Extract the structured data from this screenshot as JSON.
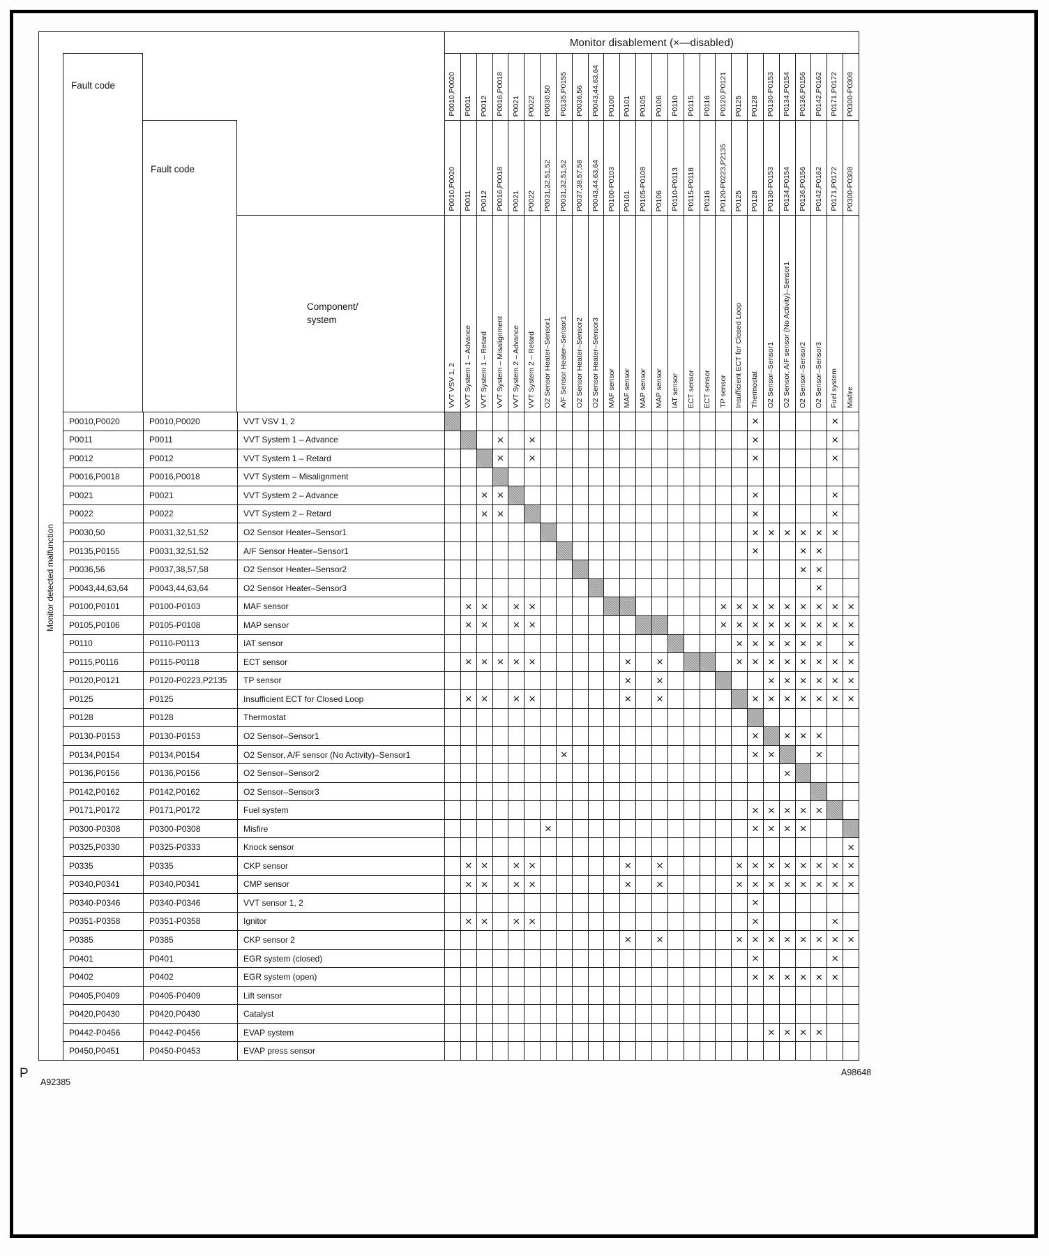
{
  "colors": {
    "ink": "#1a1a1a",
    "diag_fill": "#a8a8a8"
  },
  "table": {
    "monitor_band": "Monitor disablement (×—disabled)",
    "fault_code_header_outer": "Fault code",
    "fault_code_header_inner": "Fault code",
    "component_header_line1": "Component/",
    "component_header_line2": "system",
    "side_label": "Monitor detected malfunction",
    "x_mark": "×",
    "columns": [
      {
        "code1": "P0010,P0020",
        "code2": "P0010,P0020",
        "component": "VVT VSV 1, 2"
      },
      {
        "code1": "P0011",
        "code2": "P0011",
        "component": "VVT System 1 – Advance"
      },
      {
        "code1": "P0012",
        "code2": "P0012",
        "component": "VVT System 1 – Retard"
      },
      {
        "code1": "P0016,P0018",
        "code2": "P0016,P0018",
        "component": "VVT System – Misalignment"
      },
      {
        "code1": "P0021",
        "code2": "P0021",
        "component": "VVT System 2 – Advance"
      },
      {
        "code1": "P0022",
        "code2": "P0022",
        "component": "VVT System 2 – Retard"
      },
      {
        "code1": "P0030,50",
        "code2": "P0031,32,51,52",
        "component": "O2 Sensor Heater–Sensor1"
      },
      {
        "code1": "P0135,P0155",
        "code2": "P0031,32,51,52",
        "component": "A/F Sensor Heater–Sensor1"
      },
      {
        "code1": "P0036,56",
        "code2": "P0037,38,57,58",
        "component": "O2 Sensor Heater–Sensor2"
      },
      {
        "code1": "P0043,44,63,64",
        "code2": "P0043,44,63,64",
        "component": "O2 Sensor Heater–Sensor3"
      },
      {
        "code1": "P0100",
        "code2": "P0100-P0103",
        "component": "MAF sensor"
      },
      {
        "code1": "P0101",
        "code2": "P0101",
        "component": "MAF sensor"
      },
      {
        "code1": "P0105",
        "code2": "P0105-P0108",
        "component": "MAP sensor"
      },
      {
        "code1": "P0106",
        "code2": "P0106",
        "component": "MAP sensor"
      },
      {
        "code1": "P0110",
        "code2": "P0110-P0113",
        "component": "IAT sensor"
      },
      {
        "code1": "P0115",
        "code2": "P0115-P0118",
        "component": "ECT sensor"
      },
      {
        "code1": "P0116",
        "code2": "P0116",
        "component": "ECT sensor"
      },
      {
        "code1": "P0120,P0121",
        "code2": "P0120-P0223,P2135",
        "component": "TP sensor"
      },
      {
        "code1": "P0125",
        "code2": "P0125",
        "component": "Insufficient ECT for Closed Loop"
      },
      {
        "code1": "P0128",
        "code2": "P0128",
        "component": "Thermostat"
      },
      {
        "code1": "P0130-P0153",
        "code2": "P0130-P0153",
        "component": "O2 Sensor–Sensor1"
      },
      {
        "code1": "P0134,P0154",
        "code2": "P0134,P0154",
        "component": "O2 Sensor, A/F sensor (No Activity)–Sensor1"
      },
      {
        "code1": "P0136,P0156",
        "code2": "P0136,P0156",
        "component": "O2 Sensor–Sensor2"
      },
      {
        "code1": "P0142,P0162",
        "code2": "P0142,P0162",
        "component": "O2 Sensor–Sensor3"
      },
      {
        "code1": "P0171,P0172",
        "code2": "P0171,P0172",
        "component": "Fuel system"
      },
      {
        "code1": "P0300-P0308",
        "code2": "P0300-P0308",
        "component": "Misfire"
      }
    ],
    "rows": [
      {
        "code1": "P0010,P0020",
        "code2": "P0010,P0020",
        "component": "VVT VSV 1, 2",
        "diag": [
          0
        ],
        "x": [
          19,
          24
        ]
      },
      {
        "code1": "P0011",
        "code2": "P0011",
        "component": "VVT System 1 – Advance",
        "diag": [
          1
        ],
        "x": [
          3,
          5,
          19,
          24
        ]
      },
      {
        "code1": "P0012",
        "code2": "P0012",
        "component": "VVT System 1 – Retard",
        "diag": [
          2
        ],
        "x": [
          3,
          5,
          19,
          24
        ]
      },
      {
        "code1": "P0016,P0018",
        "code2": "P0016,P0018",
        "component": "VVT System – Misalignment",
        "diag": [
          3
        ],
        "x": []
      },
      {
        "code1": "P0021",
        "code2": "P0021",
        "component": "VVT System 2 – Advance",
        "diag": [
          4
        ],
        "x": [
          2,
          3,
          19,
          24
        ]
      },
      {
        "code1": "P0022",
        "code2": "P0022",
        "component": "VVT System 2 – Retard",
        "diag": [
          5
        ],
        "x": [
          2,
          3,
          19,
          24
        ]
      },
      {
        "code1": "P0030,50",
        "code2": "P0031,32,51,52",
        "component": "O2 Sensor Heater–Sensor1",
        "diag": [
          6
        ],
        "x": [
          19,
          20,
          21,
          22,
          23,
          24
        ]
      },
      {
        "code1": "P0135,P0155",
        "code2": "P0031,32,51,52",
        "component": "A/F Sensor Heater–Sensor1",
        "diag": [
          7
        ],
        "x": [
          19,
          22,
          23
        ]
      },
      {
        "code1": "P0036,56",
        "code2": "P0037,38,57,58",
        "component": "O2 Sensor Heater–Sensor2",
        "diag": [
          8
        ],
        "x": [
          22,
          23
        ]
      },
      {
        "code1": "P0043,44,63,64",
        "code2": "P0043,44,63,64",
        "component": "O2 Sensor Heater–Sensor3",
        "diag": [
          9
        ],
        "x": [
          23
        ]
      },
      {
        "code1": "P0100,P0101",
        "code2": "P0100-P0103",
        "component": "MAF sensor",
        "diag": [
          10,
          11
        ],
        "x": [
          1,
          2,
          4,
          5,
          17,
          18,
          19,
          20,
          21,
          22,
          23,
          24,
          25
        ]
      },
      {
        "code1": "P0105,P0106",
        "code2": "P0105-P0108",
        "component": "MAP sensor",
        "diag": [
          12,
          13
        ],
        "x": [
          1,
          2,
          4,
          5,
          17,
          18,
          19,
          20,
          21,
          22,
          23,
          24,
          25
        ]
      },
      {
        "code1": "P0110",
        "code2": "P0110-P0113",
        "component": "IAT sensor",
        "diag": [
          14
        ],
        "x": [
          18,
          19,
          20,
          21,
          22,
          23,
          25
        ]
      },
      {
        "code1": "P0115,P0116",
        "code2": "P0115-P0118",
        "component": "ECT sensor",
        "diag": [
          15,
          16
        ],
        "x": [
          1,
          2,
          3,
          4,
          5,
          11,
          13,
          18,
          19,
          20,
          21,
          22,
          23,
          24,
          25
        ]
      },
      {
        "code1": "P0120,P0121",
        "code2": "P0120-P0223,P2135",
        "component": "TP sensor",
        "diag": [
          17
        ],
        "x": [
          11,
          13,
          20,
          21,
          22,
          23,
          24,
          25
        ]
      },
      {
        "code1": "P0125",
        "code2": "P0125",
        "component": "Insufficient ECT for Closed Loop",
        "diag": [
          18
        ],
        "x": [
          1,
          2,
          4,
          5,
          11,
          13,
          19,
          20,
          21,
          22,
          23,
          24,
          25
        ]
      },
      {
        "code1": "P0128",
        "code2": "P0128",
        "component": "Thermostat",
        "diag": [
          19
        ],
        "x": []
      },
      {
        "code1": "P0130-P0153",
        "code2": "P0130-P0153",
        "component": "O2 Sensor–Sensor1",
        "diag": [
          20
        ],
        "x": [
          19,
          21,
          22,
          23
        ]
      },
      {
        "code1": "P0134,P0154",
        "code2": "P0134,P0154",
        "component": "O2 Sensor, A/F sensor (No Activity)–Sensor1",
        "diag": [
          21
        ],
        "x": [
          7,
          19,
          20,
          23
        ]
      },
      {
        "code1": "P0136,P0156",
        "code2": "P0136,P0156",
        "component": "O2 Sensor–Sensor2",
        "diag": [
          22
        ],
        "x": [
          21
        ]
      },
      {
        "code1": "P0142,P0162",
        "code2": "P0142,P0162",
        "component": "O2 Sensor–Sensor3",
        "diag": [
          23
        ],
        "x": []
      },
      {
        "code1": "P0171,P0172",
        "code2": "P0171,P0172",
        "component": "Fuel system",
        "diag": [
          24
        ],
        "x": [
          19,
          20,
          21,
          22,
          23
        ]
      },
      {
        "code1": "P0300-P0308",
        "code2": "P0300-P0308",
        "component": "Misfire",
        "diag": [
          25
        ],
        "x": [
          6,
          19,
          20,
          21,
          22
        ]
      },
      {
        "code1": "P0325,P0330",
        "code2": "P0325-P0333",
        "component": "Knock sensor",
        "diag": [],
        "x": [
          25
        ]
      },
      {
        "code1": "P0335",
        "code2": "P0335",
        "component": "CKP sensor",
        "diag": [],
        "x": [
          1,
          2,
          4,
          5,
          11,
          13,
          18,
          19,
          20,
          21,
          22,
          23,
          24,
          25
        ]
      },
      {
        "code1": "P0340,P0341",
        "code2": "P0340,P0341",
        "component": "CMP sensor",
        "diag": [],
        "x": [
          1,
          2,
          4,
          5,
          11,
          13,
          18,
          19,
          20,
          21,
          22,
          23,
          24,
          25
        ]
      },
      {
        "code1": "P0340-P0346",
        "code2": "P0340-P0346",
        "component": "VVT sensor 1, 2",
        "diag": [],
        "x": [
          19
        ]
      },
      {
        "code1": "P0351-P0358",
        "code2": "P0351-P0358",
        "component": "Ignitor",
        "diag": [],
        "x": [
          1,
          2,
          4,
          5,
          19,
          24
        ]
      },
      {
        "code1": "P0385",
        "code2": "P0385",
        "component": "CKP sensor 2",
        "diag": [],
        "x": [
          11,
          13,
          18,
          19,
          20,
          21,
          22,
          23,
          24,
          25
        ]
      },
      {
        "code1": "P0401",
        "code2": "P0401",
        "component": "EGR system (closed)",
        "diag": [],
        "x": [
          19,
          24
        ]
      },
      {
        "code1": "P0402",
        "code2": "P0402",
        "component": "EGR system (open)",
        "diag": [],
        "x": [
          19,
          20,
          21,
          22,
          23,
          24
        ]
      },
      {
        "code1": "P0405,P0409",
        "code2": "P0405-P0409",
        "component": "Lift sensor",
        "diag": [],
        "x": []
      },
      {
        "code1": "P0420,P0430",
        "code2": "P0420,P0430",
        "component": "Catalyst",
        "diag": [],
        "x": []
      },
      {
        "code1": "P0442-P0456",
        "code2": "P0442-P0456",
        "component": "EVAP system",
        "diag": [],
        "x": [
          20,
          21,
          22,
          23
        ]
      },
      {
        "code1": "P0450,P0451",
        "code2": "P0450-P0453",
        "component": "EVAP press sensor",
        "diag": [],
        "x": []
      }
    ]
  },
  "footer": {
    "page_letter": "P",
    "code_left": "A92385",
    "code_right": "A98648"
  }
}
